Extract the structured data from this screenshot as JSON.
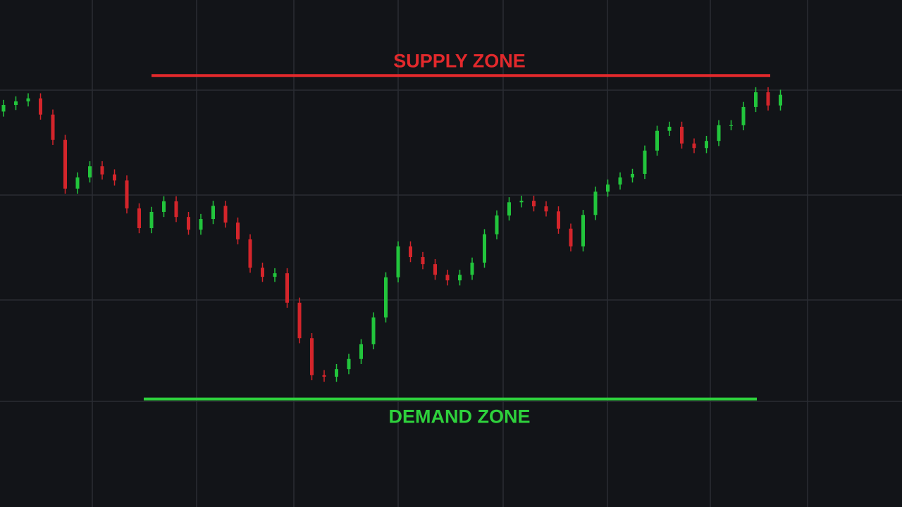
{
  "chart_data": {
    "type": "candlestick",
    "ylim": [
      0,
      100
    ],
    "up_color": "#22c53c",
    "down_color": "#d4252b",
    "open": [
      78.0,
      79.3,
      80.0,
      80.6,
      77.4,
      72.4,
      62.8,
      65.0,
      67.2,
      65.6,
      64.4,
      58.9,
      55.0,
      58.2,
      60.3,
      57.2,
      54.7,
      56.8,
      59.4,
      56.1,
      52.8,
      47.2,
      45.4,
      46.1,
      40.3,
      33.3,
      26.0,
      25.7,
      27.2,
      29.2,
      32.1,
      37.4,
      45.3,
      51.4,
      49.3,
      47.9,
      45.8,
      44.7,
      45.8,
      48.2,
      53.8,
      57.5,
      60.1,
      60.4,
      59.3,
      58.3,
      54.9,
      51.4,
      57.6,
      62.2,
      63.6,
      65.0,
      65.7,
      70.3,
      74.2,
      75.0,
      71.7,
      70.8,
      72.2,
      75.3,
      75.3,
      78.9,
      81.8,
      79.2
    ],
    "high": [
      80.3,
      81.0,
      81.6,
      81.6,
      78.4,
      73.4,
      66.0,
      68.2,
      68.2,
      66.6,
      65.4,
      59.9,
      59.2,
      61.3,
      61.3,
      58.2,
      57.8,
      60.4,
      60.4,
      57.1,
      53.8,
      48.2,
      47.1,
      47.1,
      41.3,
      34.3,
      27.0,
      28.2,
      30.2,
      33.1,
      38.4,
      46.3,
      52.4,
      52.4,
      50.3,
      48.9,
      46.8,
      46.8,
      49.2,
      54.8,
      58.5,
      61.1,
      61.4,
      61.4,
      60.3,
      59.3,
      55.9,
      58.6,
      63.2,
      64.6,
      66.0,
      66.7,
      71.3,
      75.2,
      76.0,
      76.0,
      72.7,
      73.2,
      76.3,
      76.3,
      79.9,
      82.8,
      82.8,
      82.3
    ],
    "low": [
      77.0,
      78.3,
      79.0,
      76.4,
      71.4,
      61.8,
      61.8,
      64.0,
      64.6,
      63.4,
      57.9,
      54.0,
      54.0,
      57.2,
      56.2,
      53.7,
      53.7,
      55.8,
      55.1,
      51.8,
      46.2,
      44.4,
      44.4,
      39.3,
      32.3,
      25.0,
      24.7,
      24.7,
      26.2,
      28.2,
      31.1,
      36.4,
      44.3,
      48.3,
      46.9,
      44.8,
      43.7,
      43.7,
      44.8,
      47.2,
      52.8,
      56.5,
      59.1,
      58.3,
      57.3,
      53.9,
      50.4,
      50.4,
      56.6,
      61.2,
      62.6,
      64.0,
      64.7,
      69.3,
      73.2,
      70.7,
      69.8,
      69.8,
      71.2,
      74.3,
      74.3,
      77.9,
      78.2,
      78.2
    ],
    "close": [
      79.3,
      80.0,
      80.6,
      77.4,
      72.4,
      62.8,
      65.0,
      67.2,
      65.6,
      64.4,
      58.9,
      55.0,
      58.2,
      60.3,
      57.2,
      54.7,
      56.8,
      59.4,
      56.1,
      52.8,
      47.2,
      45.4,
      46.1,
      40.3,
      33.3,
      26.0,
      25.7,
      27.2,
      29.2,
      32.1,
      37.4,
      45.3,
      51.4,
      49.3,
      47.9,
      45.8,
      44.7,
      45.8,
      48.2,
      53.8,
      57.5,
      60.1,
      60.4,
      59.3,
      58.3,
      54.9,
      51.4,
      57.6,
      62.2,
      63.6,
      65.0,
      65.7,
      70.3,
      74.2,
      75.0,
      71.7,
      70.8,
      72.2,
      75.3,
      75.3,
      78.9,
      81.8,
      79.2,
      81.3
    ],
    "annotations": [
      {
        "text": "SUPPLY ZONE",
        "value": 85.1,
        "color": "#e3292c"
      },
      {
        "text": "DEMAND ZONE",
        "value": 21.3,
        "color": "#2ed13c"
      }
    ]
  }
}
